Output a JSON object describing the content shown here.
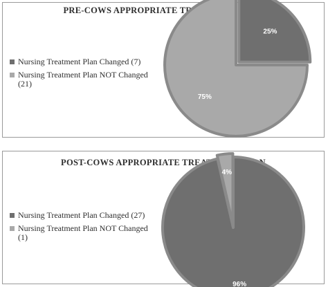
{
  "chart_data": [
    {
      "type": "pie",
      "title": "PRE-COWS APPROPRIATE TREATMENT PLAN",
      "categories": [
        "Nursing Treatment Plan Changed (7)",
        "Nursing Treatment Plan NOT Changed (21)"
      ],
      "values": [
        7,
        21
      ],
      "data_labels": [
        "25%",
        "75%"
      ],
      "colors": [
        "#6f6f6f",
        "#a9a9a9"
      ],
      "legend": "left"
    },
    {
      "type": "pie",
      "title": "POST-COWS APPROPRIATE TREATMENT PLAN",
      "categories": [
        "Nursing Treatment Plan Changed (27)",
        "Nursing Treatment Plan NOT Changed (1)"
      ],
      "values": [
        27,
        1
      ],
      "data_labels": [
        "96%",
        "4%"
      ],
      "colors": [
        "#6f6f6f",
        "#a9a9a9"
      ],
      "legend": "left"
    }
  ]
}
